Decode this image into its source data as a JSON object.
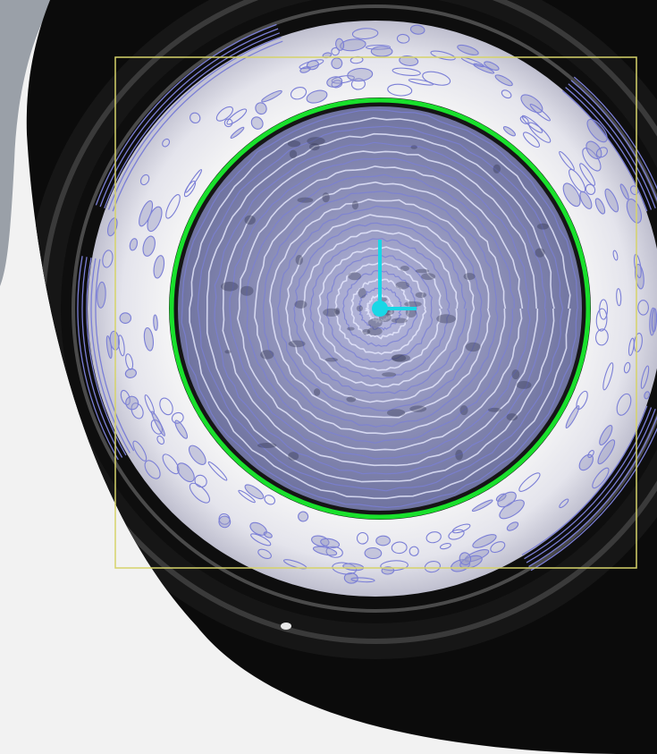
{
  "scene": {
    "description_none": "",
    "colors": {
      "page_background": "#f2f2f2",
      "slide_gray": "#9aa0a8",
      "camera_black": "#0b0b0b",
      "outer_ring_dark": "#1b1b1b",
      "bright_rim": "#f4f4f4",
      "disc_fill": "#8e91b9",
      "texture_contour": "#7b7fd6",
      "fitted_circle": "#19e02c",
      "roi_box": "#d6d36a",
      "axis_marker": "#19d7e6"
    },
    "overlays": {
      "roi_box_visible": true,
      "fitted_circle_visible": true,
      "center_axes_visible": true,
      "edge_contours_visible": true
    }
  }
}
